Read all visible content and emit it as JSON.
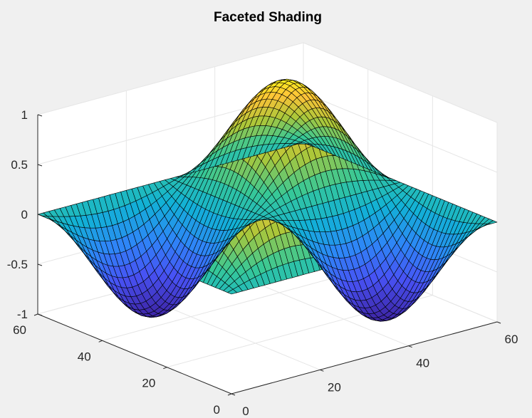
{
  "chart_data": {
    "type": "surface",
    "title": "Faceted Shading",
    "shading": "faceted",
    "colormap": "parula",
    "surface_function": "z = sin(x) * sin(y)",
    "grid_size": [
      49,
      49
    ],
    "x": {
      "range": [
        0,
        60
      ],
      "ticks": [
        "0",
        "20",
        "40",
        "60"
      ]
    },
    "y": {
      "range": [
        0,
        60
      ],
      "ticks": [
        "0",
        "20",
        "40",
        "60"
      ]
    },
    "z": {
      "range": [
        -1,
        1
      ],
      "ticks": [
        "-1",
        "-0.5",
        "0",
        "0.5",
        "1"
      ]
    },
    "grid": true,
    "box": "back-planes",
    "view": "3-D default"
  }
}
